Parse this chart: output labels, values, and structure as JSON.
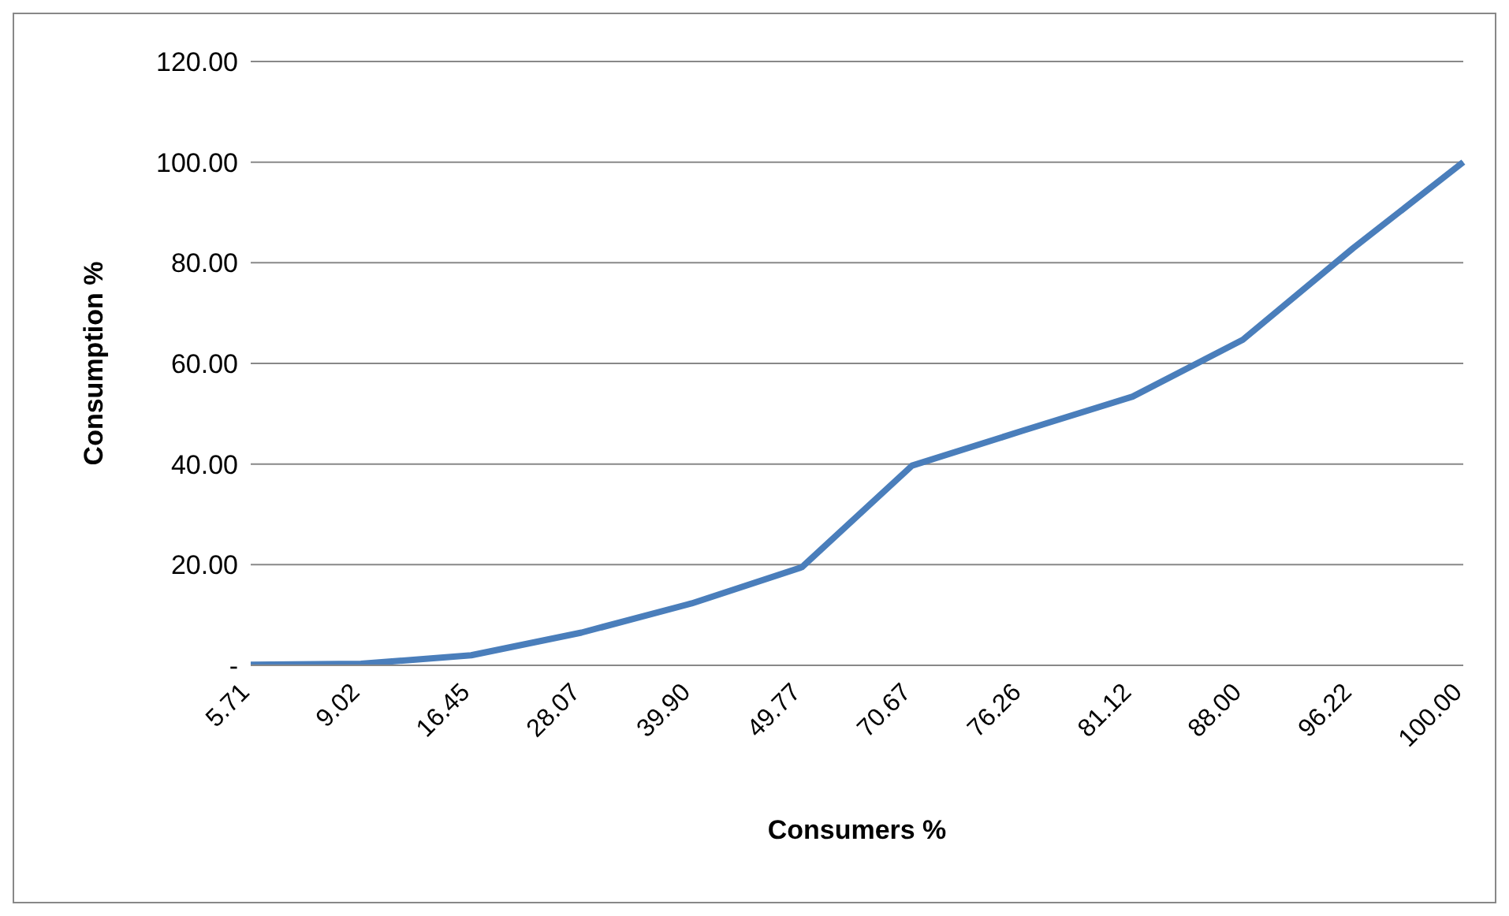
{
  "chart_data": {
    "type": "line",
    "xlabel": "Consumers %",
    "ylabel": "Consumption %",
    "categories": [
      "5.71",
      "9.02",
      "16.45",
      "28.07",
      "39.90",
      "49.77",
      "70.67",
      "76.26",
      "81.12",
      "88.00",
      "96.22",
      "100.00"
    ],
    "series": [
      {
        "color": "#4a7ebb",
        "values": [
          0.1,
          0.3,
          2,
          6.5,
          12.3,
          19.5,
          39.7,
          46.6,
          53.4,
          64.7,
          82.9,
          100
        ]
      }
    ],
    "ylim": [
      0,
      120
    ],
    "yticks": [
      {
        "value": 0,
        "label": "-"
      },
      {
        "value": 20,
        "label": "20.00"
      },
      {
        "value": 40,
        "label": "40.00"
      },
      {
        "value": 60,
        "label": "60.00"
      },
      {
        "value": 80,
        "label": "80.00"
      },
      {
        "value": 100,
        "label": "100.00"
      },
      {
        "value": 120,
        "label": "120.00"
      }
    ],
    "grid": "y",
    "legend": false,
    "marker": "none",
    "line_style": "solid"
  }
}
